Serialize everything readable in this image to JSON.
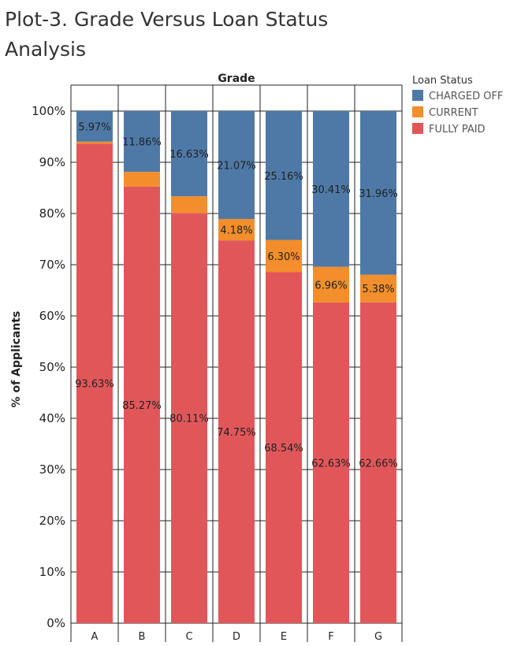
{
  "title": "Plot-3. Grade Versus Loan Status Analysis",
  "chart_data": {
    "type": "bar",
    "stacked": true,
    "normalized": true,
    "title": "Plot-3. Grade Versus Loan Status Analysis",
    "xlabel": "Grade",
    "ylabel": "% of Applicants",
    "ylim": [
      0,
      100
    ],
    "yticks": [
      "0%",
      "10%",
      "20%",
      "30%",
      "40%",
      "50%",
      "60%",
      "70%",
      "80%",
      "90%",
      "100%"
    ],
    "categories": [
      "A",
      "B",
      "C",
      "D",
      "E",
      "F",
      "G"
    ],
    "legend_title": "Loan Status",
    "legend_position": "top-right",
    "series": [
      {
        "name": "FULLY PAID",
        "color": "#e15759",
        "values": [
          93.63,
          85.27,
          80.11,
          74.75,
          68.54,
          62.63,
          62.66
        ],
        "labels": [
          "93.63%",
          "85.27%",
          "80.11%",
          "74.75%",
          "68.54%",
          "62.63%",
          "62.66%"
        ]
      },
      {
        "name": "CURRENT",
        "color": "#f28e2b",
        "values": [
          0.4,
          2.87,
          3.26,
          4.18,
          6.3,
          6.96,
          5.38
        ],
        "labels": [
          "",
          "",
          "",
          "4.18%",
          "6.30%",
          "6.96%",
          "5.38%"
        ]
      },
      {
        "name": "CHARGED OFF",
        "color": "#4e79a7",
        "values": [
          5.97,
          11.86,
          16.63,
          21.07,
          25.16,
          30.41,
          31.96
        ],
        "labels": [
          "5.97%",
          "11.86%",
          "16.63%",
          "21.07%",
          "25.16%",
          "30.41%",
          "31.96%"
        ]
      }
    ],
    "legend_order": [
      "CHARGED OFF",
      "CURRENT",
      "FULLY PAID"
    ]
  }
}
